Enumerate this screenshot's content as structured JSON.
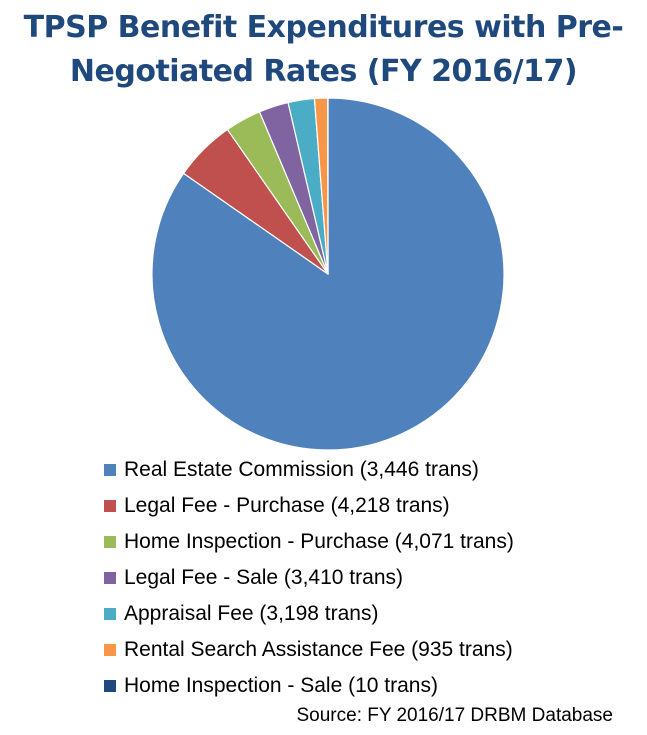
{
  "chart_data": {
    "type": "pie",
    "title": "TPSP Benefit Expenditures with Pre-Negotiated Rates (FY 2016/17)",
    "title_lines": [
      "TPSP Benefit Expenditures with Pre-",
      "Negotiated Rates (FY 2016/17)"
    ],
    "start_angle_deg": 0,
    "direction": "clockwise",
    "slices": [
      {
        "label": "Real Estate Commission (3,446 trans)",
        "value": 84.2,
        "color": "#4f81bd"
      },
      {
        "label": "Legal Fee - Purchase (4,218 trans)",
        "value": 5.6,
        "color": "#c0504d"
      },
      {
        "label": "Home Inspection - Purchase (4,071 trans)",
        "value": 3.3,
        "color": "#9bbb59"
      },
      {
        "label": "Legal Fee - Sale (3,410 trans)",
        "value": 2.7,
        "color": "#8064a2"
      },
      {
        "label": "Appraisal Fee (3,198 trans)",
        "value": 2.4,
        "color": "#4bacc6"
      },
      {
        "label": "Rental Search Assistance Fee (935 trans)",
        "value": 1.2,
        "color": "#f79646"
      },
      {
        "label": "Home Inspection - Sale (10 trans)",
        "value": 0.02,
        "color": "#1f497d"
      }
    ],
    "legend_position": "bottom",
    "source": "Source: FY 2016/17 DRBM Database"
  }
}
